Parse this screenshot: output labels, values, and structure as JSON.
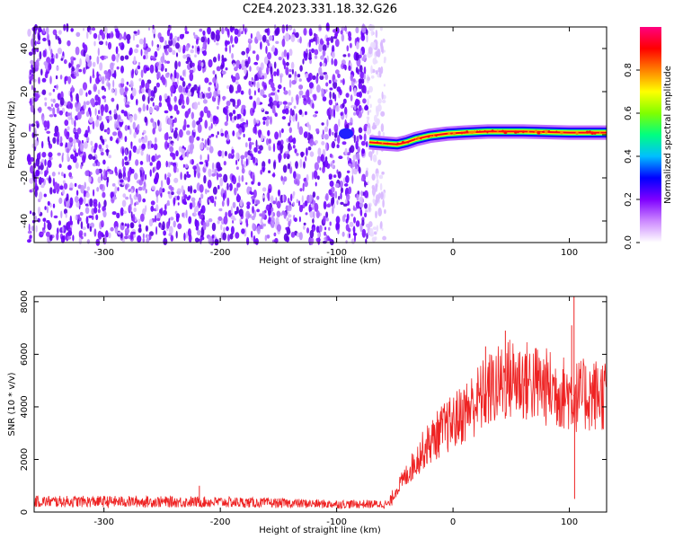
{
  "chart_data": [
    {
      "type": "heatmap",
      "title": "C2E4.2023.331.18.32.G26",
      "xlabel": "Height of straight line (km)",
      "ylabel": "Frequency (Hz)",
      "xlim": [
        -360,
        132
      ],
      "ylim": [
        -50,
        50
      ],
      "x_ticks": [
        "-300",
        "-200",
        "-100",
        "0",
        "100"
      ],
      "x_tick_values": [
        -300,
        -200,
        -100,
        0,
        100
      ],
      "y_ticks": [
        "-40",
        "-20",
        "0",
        "20",
        "40"
      ],
      "y_tick_values": [
        -40,
        -20,
        0,
        20,
        40
      ],
      "noise_region_x": [
        -360,
        -63
      ],
      "noise_blob": {
        "x": -92,
        "y": 0.5
      },
      "signal_track": [
        {
          "x": -72,
          "y": -3.5
        },
        {
          "x": -60,
          "y": -4
        },
        {
          "x": -48,
          "y": -4.5
        },
        {
          "x": -40,
          "y": -3.5
        },
        {
          "x": -32,
          "y": -2
        },
        {
          "x": -20,
          "y": -0.5
        },
        {
          "x": -5,
          "y": 0.5
        },
        {
          "x": 10,
          "y": 1
        },
        {
          "x": 30,
          "y": 1.5
        },
        {
          "x": 60,
          "y": 1.5
        },
        {
          "x": 100,
          "y": 1
        },
        {
          "x": 132,
          "y": 1
        }
      ],
      "colorbar": {
        "label": "Normalized spectral amplitude",
        "ticks": [
          "0.0",
          "0.2",
          "0.4",
          "0.6",
          "0.8"
        ],
        "tick_values": [
          0,
          0.2,
          0.4,
          0.6,
          0.8
        ],
        "range": [
          0,
          1
        ],
        "colors": [
          "#ffffff",
          "#cc88ff",
          "#7f00ff",
          "#0000ff",
          "#00bfff",
          "#00ff80",
          "#80ff00",
          "#ffff00",
          "#ff8000",
          "#ff0000",
          "#ff0080"
        ]
      }
    },
    {
      "type": "line",
      "xlabel": "Height of straight line (km)",
      "ylabel": "SNR (10 * v/v)",
      "xlim": [
        -360,
        132
      ],
      "ylim": [
        0,
        8200
      ],
      "x_ticks": [
        "-300",
        "-200",
        "-100",
        "0",
        "100"
      ],
      "x_tick_values": [
        -300,
        -200,
        -100,
        0,
        100
      ],
      "y_ticks": [
        "0",
        "2000",
        "4000",
        "6000",
        "8000"
      ],
      "y_tick_values": [
        0,
        2000,
        4000,
        6000,
        8000
      ],
      "color": "#ee2222",
      "trend": [
        {
          "x": -360,
          "y": 400
        },
        {
          "x": -300,
          "y": 400
        },
        {
          "x": -200,
          "y": 380
        },
        {
          "x": -100,
          "y": 300
        },
        {
          "x": -55,
          "y": 300
        },
        {
          "x": -48,
          "y": 900
        },
        {
          "x": -40,
          "y": 1400
        },
        {
          "x": -25,
          "y": 2400
        },
        {
          "x": -10,
          "y": 3100
        },
        {
          "x": 0,
          "y": 3400
        },
        {
          "x": 15,
          "y": 4000
        },
        {
          "x": 30,
          "y": 4600
        },
        {
          "x": 50,
          "y": 5100
        },
        {
          "x": 70,
          "y": 4900
        },
        {
          "x": 90,
          "y": 4600
        },
        {
          "x": 105,
          "y": 4400
        },
        {
          "x": 132,
          "y": 4500
        }
      ],
      "spikes": [
        {
          "x": -218,
          "y": 1000
        },
        {
          "x": 28,
          "y": 6300
        },
        {
          "x": 45,
          "y": 6900
        },
        {
          "x": 102,
          "y": 7100
        },
        {
          "x": 104,
          "y": 8200
        },
        {
          "x": 104.5,
          "y": 500
        }
      ]
    }
  ]
}
